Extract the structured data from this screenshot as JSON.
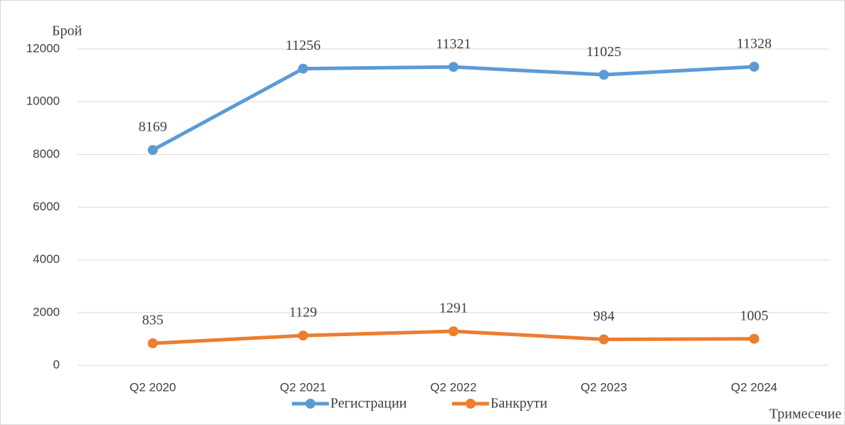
{
  "chart_data": {
    "type": "line",
    "y_label": "Брой",
    "x_label": "Тримесечие",
    "categories": [
      "Q2 2020",
      "Q2 2021",
      "Q2 2022",
      "Q2 2023",
      "Q2 2024"
    ],
    "series": [
      {
        "name": "Регистрации",
        "color": "#5b9bd5",
        "values": [
          8169,
          11256,
          11321,
          11025,
          11328
        ]
      },
      {
        "name": "Банкрути",
        "color": "#ed7d31",
        "values": [
          835,
          1129,
          1291,
          984,
          1005
        ]
      }
    ],
    "ylim": [
      0,
      12000
    ],
    "yticks": [
      0,
      2000,
      4000,
      6000,
      8000,
      10000,
      12000
    ],
    "grid": true,
    "legend": "bottom"
  }
}
